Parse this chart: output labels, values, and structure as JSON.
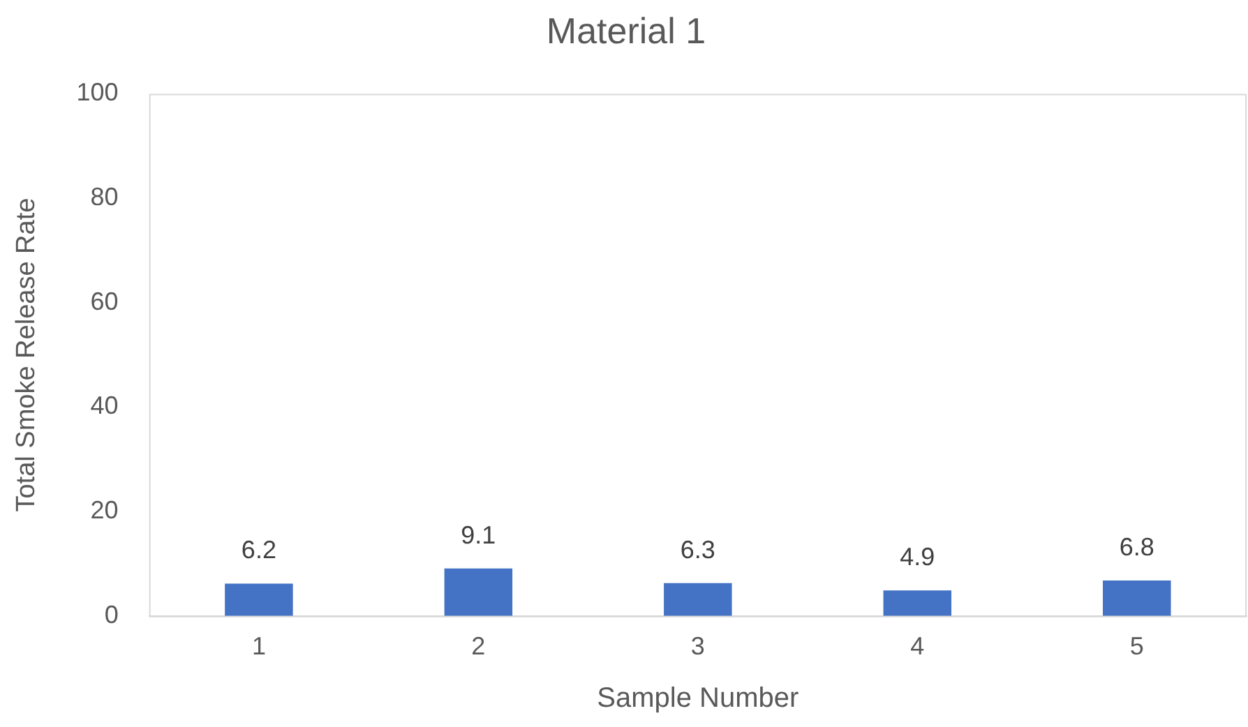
{
  "chart_data": {
    "type": "bar",
    "title": "Material 1",
    "xlabel": "Sample Number",
    "ylabel": "Total Smoke Release Rate",
    "categories": [
      "1",
      "2",
      "3",
      "4",
      "5"
    ],
    "values": [
      6.2,
      9.1,
      6.3,
      4.9,
      6.8
    ],
    "color": "#4472c4",
    "ylim": [
      0,
      100
    ],
    "yticks": [
      0,
      20,
      40,
      60,
      80,
      100
    ],
    "grid": false,
    "data_labels": true
  }
}
